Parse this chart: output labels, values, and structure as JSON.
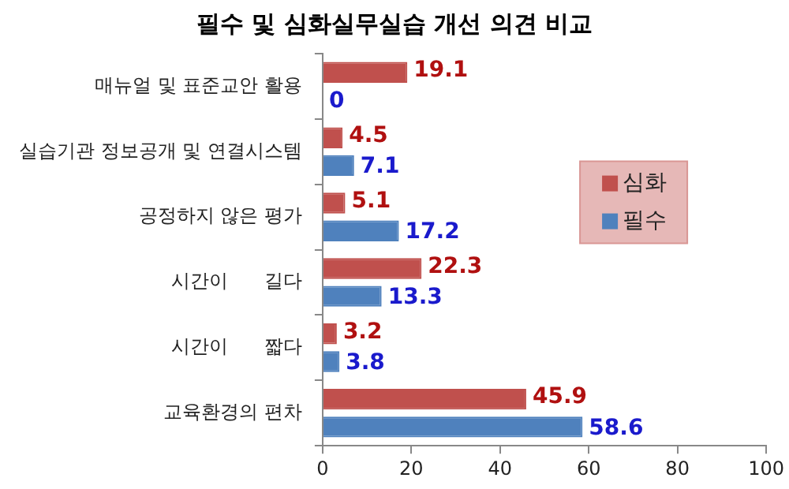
{
  "chart_data": {
    "type": "bar",
    "orientation": "horizontal",
    "title": "필수 및 심화실무실습 개선 의견 비교",
    "categories": [
      "매뉴얼 및 표준교안 활용",
      "실습기관 정보공개 및 연결시스템",
      "공정하지 않은 평가",
      "시간이      길다",
      "시간이      짧다",
      "교육환경의 편차"
    ],
    "series": [
      {
        "name": "심화",
        "color": "#c0504d",
        "values": [
          19.1,
          4.5,
          5.1,
          22.3,
          3.2,
          45.9
        ]
      },
      {
        "name": "필수",
        "color": "#4f81bd",
        "values": [
          0,
          7.1,
          17.2,
          13.3,
          3.8,
          58.6
        ]
      }
    ],
    "xlim": [
      0,
      100
    ],
    "xticks": [
      0,
      20,
      40,
      60,
      80,
      100
    ],
    "grid": false,
    "legend": "right",
    "data_labels": true
  }
}
